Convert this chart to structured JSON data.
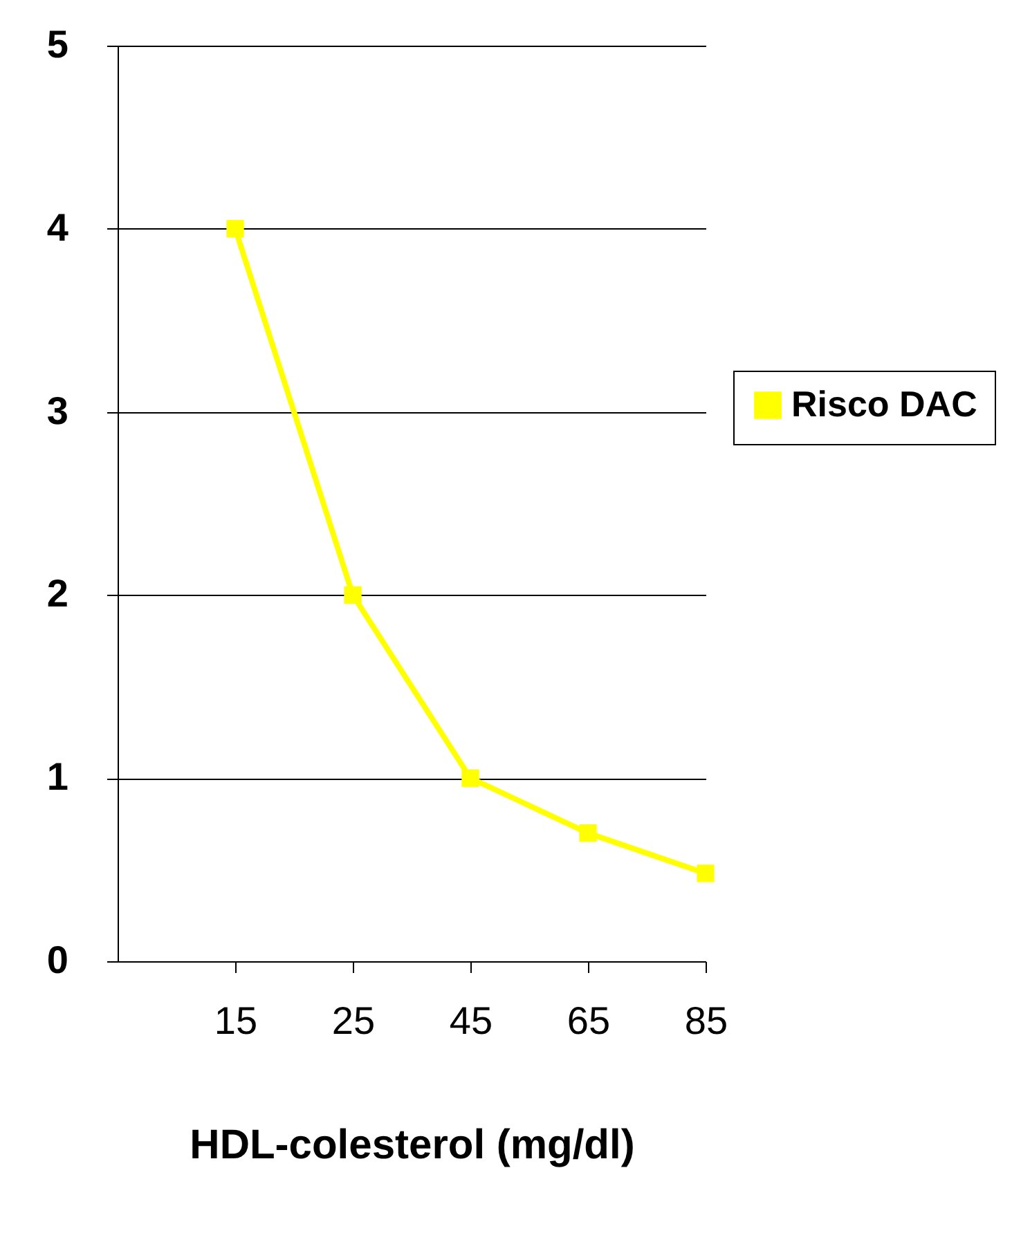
{
  "chart_data": {
    "type": "line",
    "xlabel": "HDL-colesterol (mg/dl)",
    "categories": [
      "15",
      "25",
      "45",
      "65",
      "85"
    ],
    "series": [
      {
        "name": "Risco DAC",
        "color": "#ffff00",
        "values": [
          4,
          2,
          1,
          0.7,
          0.48
        ]
      }
    ],
    "ylim": [
      0,
      5
    ],
    "yticks": [
      0,
      1,
      2,
      3,
      4,
      5
    ],
    "grid": "y",
    "legend": "right",
    "marker": "square"
  }
}
